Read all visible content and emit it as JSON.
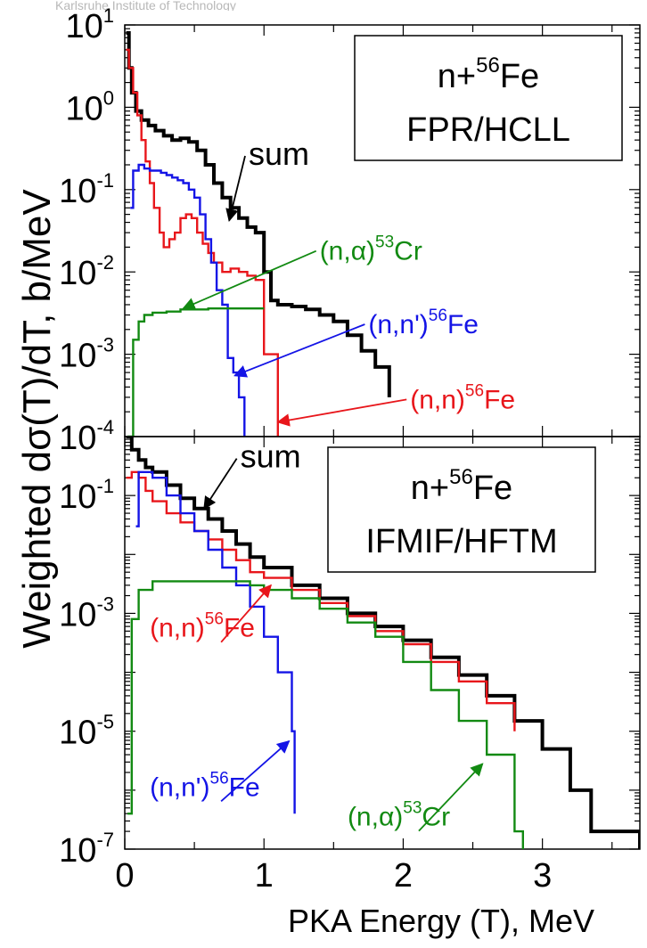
{
  "watermark": "Karlsruhe Institute of Technology",
  "ylabel": "Weighted   dσ(T)/dT,   b/MeV",
  "xlabel": "PKA Energy (T),   MeV",
  "colors": {
    "sum": "#000000",
    "elastic": "#e8161b",
    "inelastic": "#1414e6",
    "alpha": "#128a12"
  },
  "chart_data": [
    {
      "type": "line",
      "panel": "top",
      "xlim": [
        0,
        3.7
      ],
      "ylim": [
        0.0001,
        10
      ],
      "yscale": "log",
      "box": {
        "line1": "n+",
        "sup": "56",
        "line1b": "Fe",
        "line2": "FPR/HCLL"
      },
      "yticks": [
        {
          "base": "10",
          "exp": "1",
          "v": 10
        },
        {
          "base": "10",
          "exp": "0",
          "v": 1
        },
        {
          "base": "10",
          "exp": "-1",
          "v": 0.1
        },
        {
          "base": "10",
          "exp": "-2",
          "v": 0.01
        },
        {
          "base": "10",
          "exp": "-3",
          "v": 0.001
        },
        {
          "base": "10",
          "exp": "-4",
          "v": 0.0001
        }
      ],
      "series": [
        {
          "key": "sum",
          "color": "#000000",
          "x": [
            0.01,
            0.03,
            0.05,
            0.08,
            0.12,
            0.17,
            0.22,
            0.28,
            0.34,
            0.4,
            0.46,
            0.52,
            0.58,
            0.64,
            0.7,
            0.76,
            0.82,
            0.88,
            0.94,
            1.0,
            1.05,
            1.1,
            1.2,
            1.3,
            1.4,
            1.5,
            1.6,
            1.7,
            1.8,
            1.9
          ],
          "y": [
            8,
            3,
            1.5,
            0.9,
            0.7,
            0.6,
            0.52,
            0.45,
            0.4,
            0.42,
            0.38,
            0.3,
            0.2,
            0.12,
            0.08,
            0.06,
            0.045,
            0.035,
            0.03,
            0.01,
            0.0045,
            0.004,
            0.0038,
            0.0035,
            0.003,
            0.0025,
            0.0017,
            0.0011,
            0.0007,
            0.0003
          ]
        },
        {
          "key": "elastic",
          "color": "#e8161b",
          "x": [
            0.01,
            0.03,
            0.06,
            0.09,
            0.12,
            0.15,
            0.18,
            0.21,
            0.25,
            0.28,
            0.32,
            0.36,
            0.4,
            0.44,
            0.48,
            0.52,
            0.56,
            0.6,
            0.64,
            0.7,
            0.76,
            0.82,
            0.88,
            0.94,
            1.0,
            1.05,
            1.1
          ],
          "y": [
            5,
            3,
            1.5,
            0.8,
            0.4,
            0.22,
            0.12,
            0.06,
            0.03,
            0.02,
            0.025,
            0.03,
            0.045,
            0.05,
            0.045,
            0.03,
            0.022,
            0.017,
            0.013,
            0.01,
            0.011,
            0.01,
            0.009,
            0.008,
            0.001,
            0.001,
            0.0001
          ]
        },
        {
          "key": "inelastic",
          "color": "#1414e6",
          "x": [
            0.04,
            0.06,
            0.1,
            0.14,
            0.18,
            0.22,
            0.26,
            0.3,
            0.34,
            0.38,
            0.42,
            0.46,
            0.5,
            0.54,
            0.58,
            0.62,
            0.66,
            0.7,
            0.74,
            0.78,
            0.82,
            0.86
          ],
          "y": [
            0.06,
            0.17,
            0.2,
            0.18,
            0.17,
            0.17,
            0.16,
            0.15,
            0.14,
            0.13,
            0.12,
            0.1,
            0.08,
            0.05,
            0.025,
            0.013,
            0.006,
            0.004,
            0.0009,
            0.0006,
            0.0003,
            0.0001
          ]
        },
        {
          "key": "alpha",
          "color": "#128a12",
          "x": [
            0.02,
            0.06,
            0.1,
            0.14,
            0.2,
            0.3,
            0.4,
            0.5,
            0.6,
            0.7,
            0.8,
            0.9,
            1.0
          ],
          "y": [
            0.0001,
            0.0015,
            0.0025,
            0.003,
            0.0032,
            0.0033,
            0.0035,
            0.0035,
            0.0036,
            0.0036,
            0.0036,
            0.0036,
            0.0036
          ]
        }
      ],
      "annotations": [
        {
          "label": "sum",
          "color": "#000000",
          "label_x": 0.89,
          "label_y": 0.2,
          "arrow_to_x": 0.75,
          "arrow_to_y": 0.042
        },
        {
          "label": "(n,α)",
          "sup": "53",
          "tail": "Cr",
          "color": "#128a12",
          "label_x": 1.4,
          "label_y": 0.014,
          "arrow_to_x": 0.42,
          "arrow_to_y": 0.0036
        },
        {
          "label": "(n,n')",
          "sup": "56",
          "tail": "Fe",
          "color": "#1414e6",
          "label_x": 1.75,
          "label_y": 0.0018,
          "arrow_to_x": 0.79,
          "arrow_to_y": 0.00055
        },
        {
          "label": "(n,n)",
          "sup": "56",
          "tail": "Fe",
          "color": "#e8161b",
          "label_x": 2.05,
          "label_y": 0.00022,
          "arrow_to_x": 1.1,
          "arrow_to_y": 0.00015
        }
      ]
    },
    {
      "type": "line",
      "panel": "bottom",
      "xlim": [
        0,
        3.7
      ],
      "ylim": [
        1e-07,
        1
      ],
      "yscale": "log",
      "box": {
        "line1": "n+",
        "sup": "56",
        "line1b": "Fe",
        "line2": "IFMIF/HFTM"
      },
      "xticks": [
        "0",
        "1",
        "2",
        "3"
      ],
      "xtick_values": [
        0,
        1,
        2,
        3
      ],
      "yticks": [
        {
          "base": "10",
          "exp": "-1",
          "v": 0.1
        },
        {
          "base": "10",
          "exp": "-3",
          "v": 0.001
        },
        {
          "base": "10",
          "exp": "-5",
          "v": 1e-05
        },
        {
          "base": "10",
          "exp": "-7",
          "v": 1e-07
        }
      ],
      "series": [
        {
          "key": "sum",
          "color": "#000000",
          "x": [
            0.01,
            0.05,
            0.1,
            0.15,
            0.2,
            0.3,
            0.4,
            0.5,
            0.6,
            0.7,
            0.8,
            0.9,
            1.0,
            1.2,
            1.4,
            1.6,
            1.8,
            2.0,
            2.2,
            2.4,
            2.6,
            2.8,
            3.0,
            3.2,
            3.35,
            3.5,
            3.7
          ],
          "y": [
            1,
            0.6,
            0.4,
            0.3,
            0.25,
            0.15,
            0.09,
            0.06,
            0.04,
            0.025,
            0.015,
            0.009,
            0.006,
            0.003,
            0.0018,
            0.001,
            0.0006,
            0.00035,
            0.00018,
            9e-05,
            4e-05,
            1.5e-05,
            5e-06,
            1e-06,
            2e-07,
            2e-07,
            1e-07
          ]
        },
        {
          "key": "elastic",
          "color": "#e8161b",
          "x": [
            0.01,
            0.05,
            0.1,
            0.15,
            0.2,
            0.3,
            0.4,
            0.5,
            0.6,
            0.7,
            0.8,
            0.9,
            1.0,
            1.2,
            1.4,
            1.6,
            1.8,
            2.0,
            2.2,
            2.4,
            2.6,
            2.8
          ],
          "y": [
            0.2,
            0.25,
            0.2,
            0.12,
            0.08,
            0.05,
            0.035,
            0.025,
            0.018,
            0.012,
            0.008,
            0.005,
            0.004,
            0.0025,
            0.0015,
            0.0009,
            0.0005,
            0.0003,
            0.00015,
            7e-05,
            3e-05,
            1e-05
          ]
        },
        {
          "key": "inelastic",
          "color": "#1414e6",
          "x": [
            0.08,
            0.1,
            0.15,
            0.2,
            0.3,
            0.4,
            0.5,
            0.6,
            0.7,
            0.8,
            0.9,
            1.0,
            1.1,
            1.2,
            1.22
          ],
          "y": [
            0.03,
            0.25,
            0.25,
            0.2,
            0.1,
            0.05,
            0.025,
            0.012,
            0.006,
            0.003,
            0.0013,
            0.0004,
            0.0001,
            1e-05,
            4e-07
          ]
        },
        {
          "key": "alpha",
          "color": "#128a12",
          "x": [
            0.02,
            0.05,
            0.1,
            0.2,
            0.3,
            0.5,
            0.7,
            0.9,
            1.0,
            1.2,
            1.4,
            1.6,
            1.8,
            2.0,
            2.2,
            2.4,
            2.6,
            2.8,
            2.86
          ],
          "y": [
            4e-07,
            0.0008,
            0.0025,
            0.0035,
            0.0035,
            0.0035,
            0.0035,
            0.003,
            0.0025,
            0.0018,
            0.0012,
            0.0007,
            0.0004,
            0.00015,
            5e-05,
            1.5e-05,
            4e-06,
            2e-07,
            1e-07
          ]
        }
      ],
      "annotations": [
        {
          "label": "sum",
          "color": "#000000",
          "label_x": 0.83,
          "label_y": 0.3,
          "arrow_to_x": 0.57,
          "arrow_to_y": 0.06
        },
        {
          "label": "(n,n)",
          "sup": "56",
          "tail": "Fe",
          "color": "#e8161b",
          "label_x": 0.18,
          "label_y": 0.0004,
          "arrow_to_x": 1.05,
          "arrow_to_y": 0.003
        },
        {
          "label": "(n,n')",
          "sup": "56",
          "tail": "Fe",
          "color": "#1414e6",
          "label_x": 0.18,
          "label_y": 8e-07,
          "arrow_to_x": 1.18,
          "arrow_to_y": 6.8e-06
        },
        {
          "label": "(n,α)",
          "sup": "53",
          "tail": "Cr",
          "color": "#128a12",
          "label_x": 1.6,
          "label_y": 2.5e-07,
          "arrow_to_x": 2.57,
          "arrow_to_y": 2.8e-06
        }
      ]
    }
  ]
}
